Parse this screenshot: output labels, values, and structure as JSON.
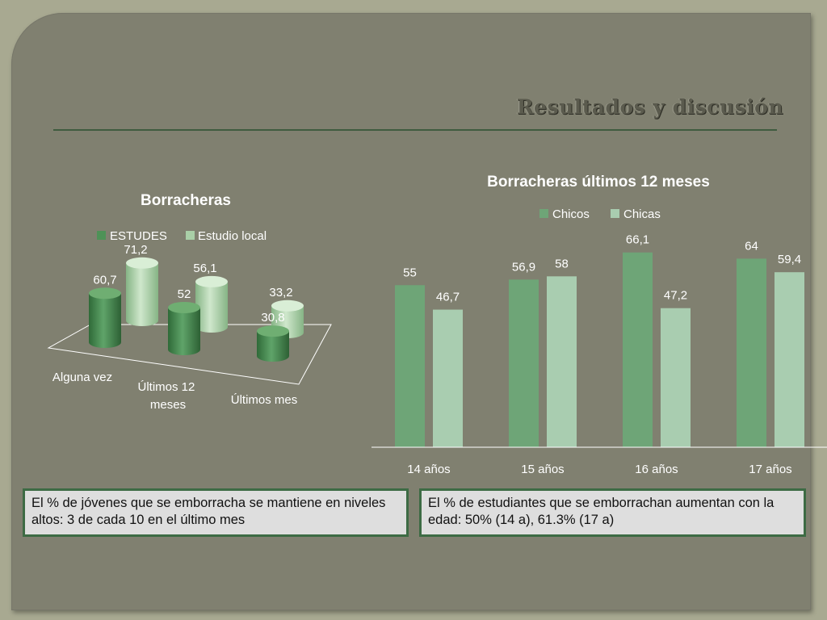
{
  "slide": {
    "title": "Resultados y discusión"
  },
  "notes": [
    "El  % de jóvenes que se emborracha  se mantiene en niveles altos: 3 de cada 10 en el último mes",
    "El % de estudiantes que se emborrachan aumentan con la edad: 50% (14 a), 61.3% (17 a)"
  ],
  "chart_data": [
    {
      "type": "bar",
      "style": "3d-cylinder",
      "title": "Borracheras",
      "categories": [
        "Alguna vez",
        "Últimos 12 meses",
        "Últimos mes"
      ],
      "series": [
        {
          "name": "ESTUDES",
          "values": [
            60.7,
            52,
            30.8
          ],
          "labels": [
            "60,7",
            "52",
            "30,8"
          ],
          "color": "#4e9257"
        },
        {
          "name": "Estudio local",
          "values": [
            71.2,
            56.1,
            33.2
          ],
          "labels": [
            "71,2",
            "56,1",
            "33,2"
          ],
          "color": "#a9cfa7"
        }
      ],
      "legend_position": "top",
      "grid": false
    },
    {
      "type": "bar",
      "title": "Borracheras últimos 12 meses",
      "categories": [
        "14 años",
        "15 años",
        "16 años",
        "17 años"
      ],
      "series": [
        {
          "name": "Chicos",
          "values": [
            55,
            56.9,
            66.1,
            64
          ],
          "labels": [
            "55",
            "56,9",
            "66,1",
            "64"
          ],
          "color": "#6ea577"
        },
        {
          "name": "Chicas",
          "values": [
            46.7,
            58,
            47.2,
            59.4
          ],
          "labels": [
            "46,7",
            "58",
            "47,2",
            "59,4"
          ],
          "color": "#a9cdb0"
        }
      ],
      "legend_position": "top",
      "grid": false
    }
  ]
}
